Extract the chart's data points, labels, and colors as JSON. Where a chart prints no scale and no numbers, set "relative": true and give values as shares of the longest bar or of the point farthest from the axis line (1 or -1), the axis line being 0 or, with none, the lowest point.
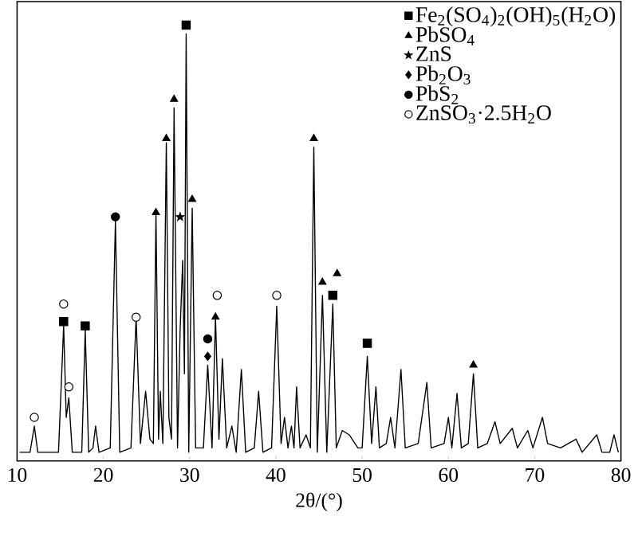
{
  "chart_data": {
    "type": "line",
    "relative": true,
    "xlabel": "2θ/(°)",
    "xlim": [
      10,
      80
    ],
    "xticks": [
      10,
      20,
      30,
      40,
      50,
      60,
      70,
      80
    ],
    "grid": false,
    "legend": "top right",
    "series": [
      {
        "color": "#000000",
        "marker": "none",
        "x": [
          10.3,
          11.5,
          12.0,
          12.4,
          14.8,
          15.4,
          15.7,
          16.0,
          16.4,
          17.5,
          17.9,
          18.3,
          18.8,
          19.1,
          19.5,
          20.8,
          21.4,
          21.9,
          23.2,
          23.8,
          24.3,
          24.9,
          25.4,
          25.8,
          26.1,
          26.4,
          26.6,
          26.9,
          27.3,
          27.6,
          27.9,
          28.2,
          28.6,
          28.9,
          29.2,
          29.4,
          29.6,
          29.9,
          30.3,
          30.7,
          31.6,
          32.1,
          32.6,
          33.0,
          33.4,
          33.8,
          34.3,
          34.9,
          35.4,
          36.0,
          36.5,
          37.5,
          38.0,
          38.5,
          39.5,
          40.1,
          40.6,
          41.0,
          41.4,
          41.8,
          42.1,
          42.4,
          42.8,
          43.5,
          44.0,
          44.4,
          44.8,
          45.4,
          45.9,
          46.6,
          47.0,
          47.7,
          48.5,
          49.5,
          50.0,
          50.6,
          51.1,
          51.6,
          52.0,
          52.8,
          53.3,
          53.8,
          54.5,
          55.0,
          56.5,
          57.5,
          58.0,
          59.5,
          60.0,
          60.4,
          61.0,
          61.5,
          62.3,
          62.9,
          63.4,
          64.5,
          65.4,
          66.0,
          67.4,
          68.0,
          69.2,
          69.8,
          70.9,
          71.5,
          73.0,
          74.8,
          75.5,
          77.2,
          77.8,
          78.7,
          79.2,
          79.7
        ],
        "values": [
          0.02,
          0.02,
          0.08,
          0.02,
          0.02,
          0.31,
          0.1,
          0.145,
          0.02,
          0.02,
          0.3,
          0.02,
          0.03,
          0.08,
          0.02,
          0.03,
          0.55,
          0.02,
          0.03,
          0.33,
          0.04,
          0.16,
          0.05,
          0.04,
          0.57,
          0.05,
          0.16,
          0.04,
          0.73,
          0.1,
          0.05,
          0.81,
          0.03,
          0.3,
          0.46,
          0.2,
          0.98,
          0.02,
          0.58,
          0.03,
          0.03,
          0.22,
          0.03,
          0.33,
          0.05,
          0.235,
          0.03,
          0.08,
          0.02,
          0.21,
          0.02,
          0.03,
          0.16,
          0.02,
          0.03,
          0.355,
          0.04,
          0.1,
          0.03,
          0.08,
          0.03,
          0.17,
          0.03,
          0.06,
          0.03,
          0.72,
          0.02,
          0.38,
          0.02,
          0.36,
          0.03,
          0.07,
          0.06,
          0.03,
          0.03,
          0.24,
          0.04,
          0.17,
          0.03,
          0.04,
          0.1,
          0.03,
          0.21,
          0.03,
          0.04,
          0.18,
          0.03,
          0.04,
          0.1,
          0.03,
          0.155,
          0.03,
          0.04,
          0.2,
          0.03,
          0.04,
          0.09,
          0.04,
          0.075,
          0.03,
          0.07,
          0.03,
          0.1,
          0.04,
          0.03,
          0.05,
          0.02,
          0.06,
          0.02,
          0.02,
          0.06,
          0.02
        ]
      },
      {
        "type": "scatter",
        "name": "Fe$_{2}$(SO$_{4}$)$_{2}$(OH)$_{5}$(H$_{2}$O)",
        "color": "#000000",
        "marker": "square",
        "x": [
          15.4,
          17.9,
          29.6,
          46.6,
          50.6
        ],
        "values": [
          0.32,
          0.31,
          1.0,
          0.38,
          0.27
        ]
      },
      {
        "type": "scatter",
        "name": "PbSO$_{4}$",
        "color": "#000000",
        "marker": "triangle",
        "x": [
          26.1,
          27.3,
          28.2,
          30.3,
          33.0,
          44.4,
          45.4,
          47.1,
          62.9
        ],
        "values": [
          0.57,
          0.74,
          0.83,
          0.6,
          0.33,
          0.74,
          0.41,
          0.43,
          0.22
        ]
      },
      {
        "type": "scatter",
        "name": "ZnS",
        "color": "#000000",
        "marker": "star",
        "x": [
          28.9
        ],
        "values": [
          0.56
        ]
      },
      {
        "type": "scatter",
        "name": "Pb$_{2}$O$_{3}$",
        "color": "#000000",
        "marker": "diamond",
        "x": [
          32.1
        ],
        "values": [
          0.24
        ]
      },
      {
        "type": "scatter",
        "name": "PbS$_{2}$",
        "color": "#000000",
        "marker": "circle",
        "x": [
          21.4,
          32.1
        ],
        "values": [
          0.56,
          0.28
        ]
      },
      {
        "type": "scatter",
        "name": "ZnSO$_{3}$·2.5H$_{2}$O",
        "color": "#ffffff",
        "marker": "circle",
        "x": [
          12.0,
          15.4,
          16.0,
          23.8,
          33.2,
          40.1
        ],
        "values": [
          0.1,
          0.36,
          0.17,
          0.33,
          0.38,
          0.38
        ]
      }
    ]
  }
}
